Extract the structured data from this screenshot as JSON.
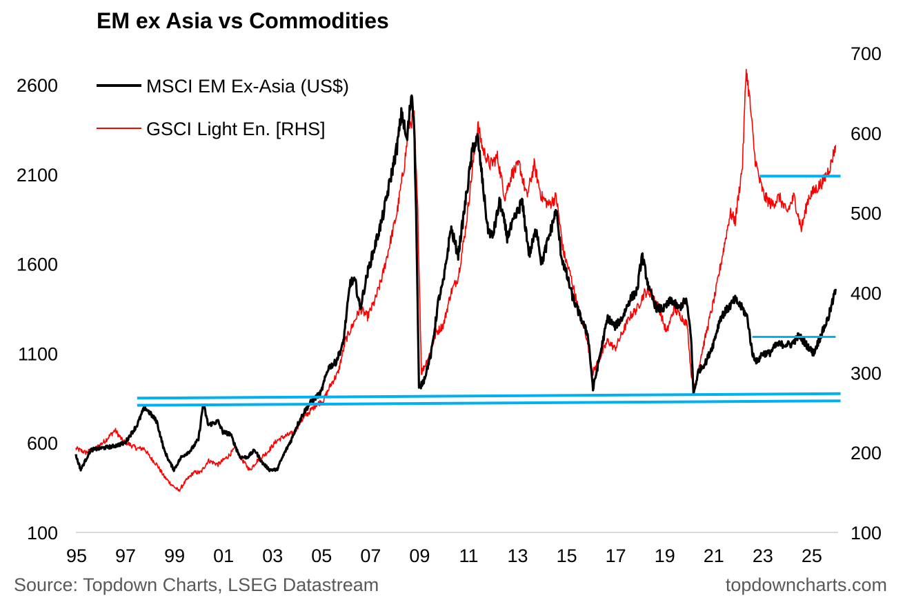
{
  "chart_data": {
    "type": "line",
    "title": "EM ex Asia vs Commodities",
    "source": "Source: Topdown Charts, LSEG Datastream",
    "watermark": "topdowncharts.com",
    "x_ticks": [
      "95",
      "97",
      "99",
      "01",
      "03",
      "05",
      "07",
      "09",
      "11",
      "13",
      "15",
      "17",
      "19",
      "21",
      "23",
      "25"
    ],
    "x_range": [
      1995.0,
      2026.1
    ],
    "left_axis": {
      "ticks": [
        100,
        600,
        1100,
        1600,
        2100,
        2600
      ],
      "range": [
        100,
        2750
      ]
    },
    "right_axis": {
      "ticks": [
        100,
        200,
        300,
        400,
        500,
        600,
        700
      ],
      "range": [
        100,
        700
      ]
    },
    "series": [
      {
        "name": "MSCI EM Ex-Asia (US$)",
        "axis": "left",
        "color": "#000000",
        "points": [
          [
            1995.0,
            530
          ],
          [
            1995.2,
            450
          ],
          [
            1995.6,
            560
          ],
          [
            1996.0,
            570
          ],
          [
            1996.5,
            580
          ],
          [
            1997.0,
            600
          ],
          [
            1997.5,
            700
          ],
          [
            1997.8,
            800
          ],
          [
            1998.0,
            770
          ],
          [
            1998.3,
            720
          ],
          [
            1998.6,
            560
          ],
          [
            1998.8,
            500
          ],
          [
            1999.0,
            450
          ],
          [
            1999.3,
            520
          ],
          [
            1999.7,
            560
          ],
          [
            2000.0,
            620
          ],
          [
            2000.2,
            820
          ],
          [
            2000.4,
            700
          ],
          [
            2000.8,
            720
          ],
          [
            2001.0,
            660
          ],
          [
            2001.3,
            650
          ],
          [
            2001.7,
            520
          ],
          [
            2002.0,
            520
          ],
          [
            2002.3,
            560
          ],
          [
            2002.6,
            490
          ],
          [
            2002.9,
            450
          ],
          [
            2003.2,
            450
          ],
          [
            2003.5,
            540
          ],
          [
            2003.8,
            620
          ],
          [
            2004.0,
            690
          ],
          [
            2004.3,
            770
          ],
          [
            2004.6,
            830
          ],
          [
            2005.0,
            880
          ],
          [
            2005.3,
            1020
          ],
          [
            2005.6,
            1050
          ],
          [
            2005.9,
            1150
          ],
          [
            2006.2,
            1500
          ],
          [
            2006.4,
            1500
          ],
          [
            2006.6,
            1350
          ],
          [
            2006.9,
            1550
          ],
          [
            2007.2,
            1700
          ],
          [
            2007.5,
            1850
          ],
          [
            2007.8,
            2050
          ],
          [
            2008.1,
            2250
          ],
          [
            2008.3,
            2450
          ],
          [
            2008.5,
            2280
          ],
          [
            2008.7,
            2560
          ],
          [
            2008.8,
            2400
          ],
          [
            2008.9,
            1750
          ],
          [
            2009.0,
            900
          ],
          [
            2009.2,
            950
          ],
          [
            2009.5,
            1100
          ],
          [
            2009.8,
            1400
          ],
          [
            2010.0,
            1500
          ],
          [
            2010.3,
            1800
          ],
          [
            2010.6,
            1650
          ],
          [
            2010.9,
            1950
          ],
          [
            2011.2,
            2250
          ],
          [
            2011.4,
            2300
          ],
          [
            2011.6,
            2050
          ],
          [
            2011.8,
            1800
          ],
          [
            2012.0,
            1750
          ],
          [
            2012.3,
            1950
          ],
          [
            2012.6,
            1750
          ],
          [
            2012.9,
            1850
          ],
          [
            2013.2,
            1950
          ],
          [
            2013.5,
            1650
          ],
          [
            2013.8,
            1800
          ],
          [
            2014.0,
            1600
          ],
          [
            2014.3,
            1750
          ],
          [
            2014.6,
            1900
          ],
          [
            2014.8,
            1650
          ],
          [
            2015.0,
            1550
          ],
          [
            2015.3,
            1400
          ],
          [
            2015.6,
            1300
          ],
          [
            2015.9,
            1200
          ],
          [
            2016.1,
            900
          ],
          [
            2016.4,
            1100
          ],
          [
            2016.7,
            1300
          ],
          [
            2017.0,
            1250
          ],
          [
            2017.3,
            1300
          ],
          [
            2017.6,
            1400
          ],
          [
            2017.9,
            1450
          ],
          [
            2018.1,
            1650
          ],
          [
            2018.4,
            1450
          ],
          [
            2018.7,
            1350
          ],
          [
            2019.0,
            1350
          ],
          [
            2019.3,
            1400
          ],
          [
            2019.6,
            1350
          ],
          [
            2019.9,
            1400
          ],
          [
            2020.1,
            1200
          ],
          [
            2020.2,
            870
          ],
          [
            2020.4,
            1000
          ],
          [
            2020.7,
            1050
          ],
          [
            2021.0,
            1150
          ],
          [
            2021.3,
            1300
          ],
          [
            2021.6,
            1350
          ],
          [
            2021.9,
            1400
          ],
          [
            2022.2,
            1350
          ],
          [
            2022.4,
            1300
          ],
          [
            2022.6,
            1100
          ],
          [
            2022.8,
            1050
          ],
          [
            2023.0,
            1100
          ],
          [
            2023.3,
            1100
          ],
          [
            2023.6,
            1150
          ],
          [
            2023.9,
            1150
          ],
          [
            2024.2,
            1150
          ],
          [
            2024.5,
            1200
          ],
          [
            2024.8,
            1150
          ],
          [
            2025.1,
            1100
          ],
          [
            2025.4,
            1200
          ],
          [
            2025.7,
            1300
          ],
          [
            2025.9,
            1400
          ],
          [
            2026.0,
            1460
          ]
        ]
      },
      {
        "name": "GSCI Light En. [RHS]",
        "axis": "right",
        "color": "#ff0000",
        "points": [
          [
            1995.0,
            205
          ],
          [
            1995.4,
            200
          ],
          [
            1995.8,
            205
          ],
          [
            1996.2,
            215
          ],
          [
            1996.6,
            228
          ],
          [
            1996.9,
            215
          ],
          [
            1997.2,
            210
          ],
          [
            1997.5,
            205
          ],
          [
            1997.8,
            205
          ],
          [
            1998.0,
            195
          ],
          [
            1998.3,
            185
          ],
          [
            1998.6,
            170
          ],
          [
            1998.9,
            160
          ],
          [
            1999.2,
            152
          ],
          [
            1999.5,
            165
          ],
          [
            1999.8,
            175
          ],
          [
            2000.1,
            175
          ],
          [
            2000.4,
            190
          ],
          [
            2000.8,
            185
          ],
          [
            2001.2,
            195
          ],
          [
            2001.5,
            205
          ],
          [
            2001.8,
            190
          ],
          [
            2002.1,
            178
          ],
          [
            2002.4,
            190
          ],
          [
            2002.8,
            200
          ],
          [
            2003.2,
            215
          ],
          [
            2003.5,
            220
          ],
          [
            2003.9,
            225
          ],
          [
            2004.2,
            240
          ],
          [
            2004.5,
            250
          ],
          [
            2004.8,
            260
          ],
          [
            2005.1,
            265
          ],
          [
            2005.4,
            285
          ],
          [
            2005.7,
            300
          ],
          [
            2006.0,
            340
          ],
          [
            2006.3,
            360
          ],
          [
            2006.6,
            380
          ],
          [
            2006.9,
            370
          ],
          [
            2007.2,
            390
          ],
          [
            2007.5,
            420
          ],
          [
            2007.8,
            460
          ],
          [
            2008.1,
            500
          ],
          [
            2008.4,
            560
          ],
          [
            2008.6,
            610
          ],
          [
            2008.8,
            620
          ],
          [
            2008.95,
            500
          ],
          [
            2009.1,
            300
          ],
          [
            2009.4,
            320
          ],
          [
            2009.7,
            350
          ],
          [
            2010.0,
            360
          ],
          [
            2010.3,
            400
          ],
          [
            2010.6,
            420
          ],
          [
            2010.9,
            480
          ],
          [
            2011.2,
            560
          ],
          [
            2011.4,
            610
          ],
          [
            2011.6,
            580
          ],
          [
            2011.9,
            560
          ],
          [
            2012.2,
            570
          ],
          [
            2012.5,
            520
          ],
          [
            2012.8,
            550
          ],
          [
            2013.1,
            560
          ],
          [
            2013.4,
            520
          ],
          [
            2013.7,
            560
          ],
          [
            2014.0,
            520
          ],
          [
            2014.3,
            510
          ],
          [
            2014.6,
            520
          ],
          [
            2014.9,
            450
          ],
          [
            2015.2,
            420
          ],
          [
            2015.5,
            380
          ],
          [
            2015.8,
            350
          ],
          [
            2016.1,
            300
          ],
          [
            2016.4,
            320
          ],
          [
            2016.7,
            340
          ],
          [
            2017.0,
            330
          ],
          [
            2017.3,
            350
          ],
          [
            2017.6,
            370
          ],
          [
            2017.9,
            380
          ],
          [
            2018.2,
            400
          ],
          [
            2018.5,
            400
          ],
          [
            2018.8,
            380
          ],
          [
            2019.1,
            350
          ],
          [
            2019.4,
            380
          ],
          [
            2019.7,
            370
          ],
          [
            2019.95,
            360
          ],
          [
            2020.1,
            300
          ],
          [
            2020.25,
            280
          ],
          [
            2020.5,
            320
          ],
          [
            2020.8,
            360
          ],
          [
            2021.1,
            400
          ],
          [
            2021.4,
            450
          ],
          [
            2021.7,
            500
          ],
          [
            2021.9,
            490
          ],
          [
            2022.2,
            560
          ],
          [
            2022.35,
            680
          ],
          [
            2022.5,
            640
          ],
          [
            2022.7,
            570
          ],
          [
            2022.9,
            540
          ],
          [
            2023.1,
            520
          ],
          [
            2023.4,
            510
          ],
          [
            2023.7,
            520
          ],
          [
            2024.0,
            500
          ],
          [
            2024.3,
            520
          ],
          [
            2024.6,
            480
          ],
          [
            2024.9,
            520
          ],
          [
            2025.2,
            530
          ],
          [
            2025.5,
            540
          ],
          [
            2025.8,
            560
          ],
          [
            2026.0,
            585
          ]
        ]
      }
    ],
    "annotations": {
      "color": "#00b0f0",
      "lines": [
        {
          "axis": "left",
          "x": [
            1997.5,
            2026.2
          ],
          "y": [
            850,
            875
          ]
        },
        {
          "axis": "left",
          "x": [
            1997.5,
            2026.2
          ],
          "y": [
            810,
            835
          ]
        },
        {
          "axis": "left",
          "x": [
            2022.6,
            2026.0
          ],
          "y": [
            1192,
            1192
          ]
        },
        {
          "axis": "right",
          "x": [
            2022.9,
            2026.2
          ],
          "y": [
            546,
            546
          ]
        }
      ]
    }
  }
}
